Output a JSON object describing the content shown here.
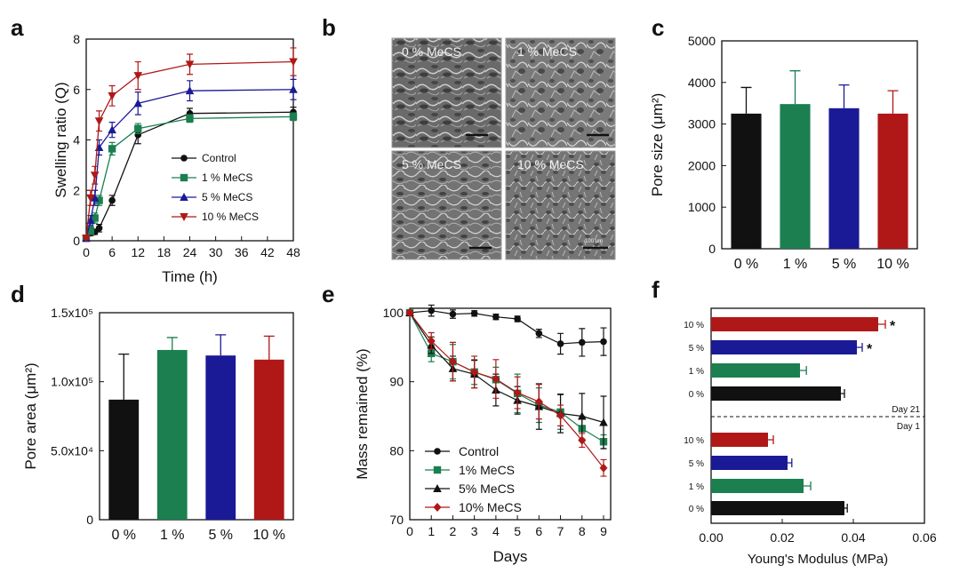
{
  "panel_labels": [
    "a",
    "b",
    "c",
    "d",
    "e",
    "f"
  ],
  "colors": {
    "control": "#111111",
    "mecs1": "#1b7f50",
    "mecs5": "#1a1a96",
    "mecs10": "#b01818"
  },
  "sem": {
    "labels": [
      "0 % MeCS",
      "1 % MeCS",
      "5 % MeCS",
      "10 % MeCS"
    ],
    "scale_text": "100 μm"
  },
  "chart_data": [
    {
      "type": "line",
      "panel": "a",
      "xlabel": "Time (h)",
      "ylabel": "Swelling ratio (Q)",
      "xlim": [
        0,
        48
      ],
      "ylim": [
        0,
        8
      ],
      "xticks": [
        "0",
        "6",
        "12",
        "18",
        "24",
        "30",
        "36",
        "42",
        "48"
      ],
      "yticks": [
        "0",
        "2",
        "4",
        "6",
        "8"
      ],
      "x": [
        0,
        1,
        2,
        3,
        6,
        12,
        24,
        48
      ],
      "legend_position": "lower-right",
      "series": [
        {
          "name": "Control",
          "marker": "circle",
          "color": "#111111",
          "values": [
            0.1,
            0.3,
            0.35,
            0.5,
            1.6,
            4.2,
            5.05,
            5.1
          ],
          "err": [
            0.05,
            0.1,
            0.1,
            0.15,
            0.2,
            0.35,
            0.2,
            0.2
          ]
        },
        {
          "name": "1 % MeCS",
          "marker": "square",
          "color": "#1b7f50",
          "values": [
            0.1,
            0.4,
            0.9,
            1.6,
            3.65,
            4.45,
            4.85,
            4.92
          ],
          "err": [
            0.05,
            0.15,
            0.2,
            0.2,
            0.25,
            0.2,
            0.15,
            0.15
          ]
        },
        {
          "name": "5 % MeCS",
          "marker": "triangle",
          "color": "#1a1a96",
          "values": [
            0.1,
            0.8,
            1.7,
            3.7,
            4.4,
            5.45,
            5.95,
            6.0
          ],
          "err": [
            0.05,
            0.2,
            0.3,
            0.3,
            0.3,
            0.45,
            0.4,
            0.4
          ]
        },
        {
          "name": "10 % MeCS",
          "marker": "triangle-down",
          "color": "#b01818",
          "values": [
            0.1,
            1.7,
            2.6,
            4.75,
            5.75,
            6.55,
            7.0,
            7.1
          ],
          "err": [
            0.05,
            0.3,
            0.35,
            0.4,
            0.4,
            0.55,
            0.4,
            0.55
          ]
        }
      ]
    },
    {
      "type": "bar",
      "panel": "c",
      "categories": [
        "0 %",
        "1 %",
        "5 %",
        "10 %"
      ],
      "ylabel": "Pore size (μm²)",
      "ylim": [
        0,
        5000
      ],
      "yticks": [
        "0",
        "1000",
        "2000",
        "3000",
        "4000",
        "5000"
      ],
      "values": [
        3250,
        3480,
        3380,
        3250
      ],
      "err": [
        630,
        800,
        560,
        550
      ]
    },
    {
      "type": "bar",
      "panel": "d",
      "categories": [
        "0 %",
        "1 %",
        "5 %",
        "10 %"
      ],
      "ylabel": "Pore area (μm²)",
      "ylim": [
        0,
        150000
      ],
      "yticks": [
        "0",
        "5.0x10⁴",
        "1.0x10⁵",
        "1.5x10⁵"
      ],
      "values": [
        87000,
        123000,
        119000,
        116000
      ],
      "err": [
        33000,
        9000,
        15000,
        17000
      ]
    },
    {
      "type": "line",
      "panel": "e",
      "xlabel": "Days",
      "ylabel": "Mass remained (%)",
      "xlim": [
        0,
        9
      ],
      "ylim": [
        70,
        100
      ],
      "xticks": [
        "0",
        "1",
        "2",
        "3",
        "4",
        "5",
        "6",
        "7",
        "8",
        "9"
      ],
      "yticks": [
        "70",
        "80",
        "90",
        "100"
      ],
      "x": [
        0,
        1,
        2,
        3,
        4,
        5,
        6,
        7,
        8,
        9
      ],
      "legend_position": "lower-left",
      "series": [
        {
          "name": "Control",
          "marker": "circle",
          "color": "#111111",
          "values": [
            100,
            100.3,
            99.8,
            99.9,
            99.4,
            99.1,
            97.0,
            95.5,
            95.7,
            95.8
          ],
          "err": [
            0.3,
            0.8,
            0.6,
            0.4,
            0.4,
            0.4,
            0.6,
            1.5,
            2.0,
            2.0
          ]
        },
        {
          "name": "1% MeCS",
          "marker": "square",
          "color": "#1b7f50",
          "values": [
            100,
            94.1,
            92.9,
            91.4,
            90.3,
            88.3,
            86.6,
            85.6,
            83.2,
            81.3
          ],
          "err": [
            0.3,
            1.2,
            2.5,
            1.8,
            1.8,
            2.8,
            2.5,
            2.5,
            1.8,
            1.0
          ]
        },
        {
          "name": "5% MeCS",
          "marker": "triangle",
          "color": "#111111",
          "values": [
            100,
            95.3,
            91.9,
            91.1,
            88.8,
            87.3,
            86.4,
            85.4,
            85.0,
            84.1
          ],
          "err": [
            0.3,
            1.2,
            1.8,
            2.0,
            2.3,
            2.0,
            3.3,
            2.8,
            3.3,
            3.8
          ]
        },
        {
          "name": "10% MeCS",
          "marker": "diamond",
          "color": "#b01818",
          "values": [
            100,
            95.9,
            92.9,
            91.4,
            90.4,
            88.4,
            87.1,
            85.1,
            81.5,
            77.5
          ],
          "err": [
            0.3,
            1.2,
            2.8,
            2.3,
            2.8,
            2.3,
            2.5,
            1.5,
            1.0,
            1.2
          ]
        }
      ]
    },
    {
      "type": "bar",
      "panel": "f",
      "orientation": "horizontal",
      "xlabel": "Young's Modulus (MPa)",
      "xlim": [
        0,
        0.06
      ],
      "xticks": [
        "0.00",
        "0.02",
        "0.04",
        "0.06"
      ],
      "groups": [
        {
          "name": "Day 21",
          "categories": [
            "10 %",
            "5 %",
            "1 %",
            "0 %"
          ],
          "values": [
            0.047,
            0.041,
            0.025,
            0.0365
          ],
          "err": [
            0.002,
            0.0015,
            0.0018,
            0.001
          ],
          "significance": [
            "*",
            "*",
            "",
            ""
          ]
        },
        {
          "name": "Day 1",
          "categories": [
            "10 %",
            "5 %",
            "1 %",
            "0 %"
          ],
          "values": [
            0.016,
            0.0215,
            0.026,
            0.0375
          ],
          "err": [
            0.0015,
            0.0012,
            0.002,
            0.0008
          ],
          "significance": [
            "",
            "",
            "",
            ""
          ]
        }
      ],
      "colors": [
        "#b01818",
        "#1a1a96",
        "#1b7f50",
        "#111111"
      ]
    }
  ]
}
